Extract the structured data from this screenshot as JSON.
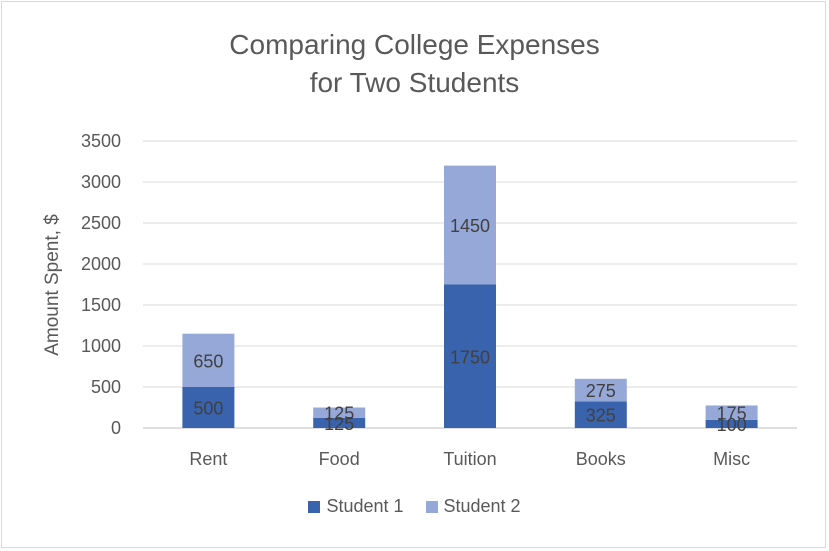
{
  "chart_data": {
    "type": "bar",
    "stacked": true,
    "title_lines": [
      "Comparing College Expenses",
      "for Two Students"
    ],
    "ylabel": "Amount Spent, $",
    "xlabel": "",
    "ylim": [
      0,
      3500
    ],
    "yticks": [
      0,
      500,
      1000,
      1500,
      2000,
      2500,
      3000,
      3500
    ],
    "grid": true,
    "legend_position": "bottom",
    "categories": [
      "Rent",
      "Food",
      "Tuition",
      "Books",
      "Misc"
    ],
    "series": [
      {
        "name": "Student 1",
        "color": "#3a63ad",
        "values": [
          500,
          125,
          1750,
          325,
          100
        ]
      },
      {
        "name": "Student 2",
        "color": "#95a8d8",
        "values": [
          650,
          125,
          1450,
          275,
          175
        ]
      }
    ]
  }
}
